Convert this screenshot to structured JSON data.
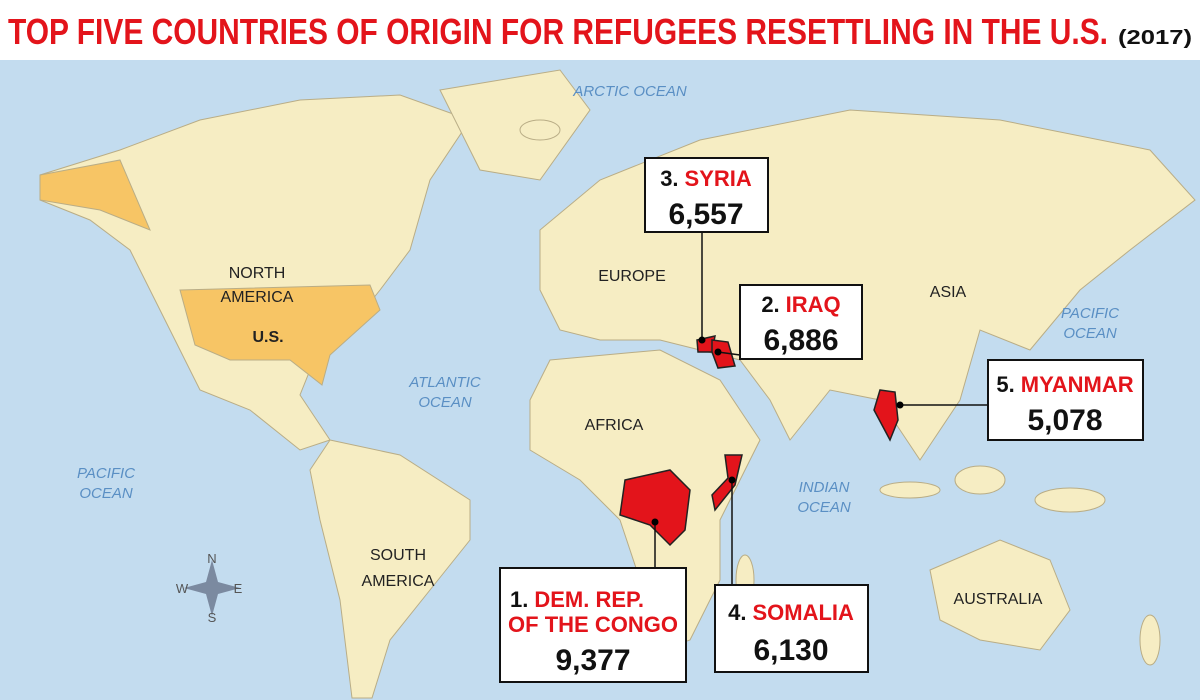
{
  "title": "TOP FIVE COUNTRIES OF ORIGIN FOR REFUGEES RESETTLING IN THE U.S.",
  "subtitle": "(2017)",
  "map_labels": [
    "ARCTIC OCEAN",
    "NORTH",
    "AMERICA",
    "U.S.",
    "EUROPE",
    "ASIA",
    "PACIFIC",
    "OCEAN",
    "ATLANTIC",
    "OCEAN",
    "AFRICA",
    "INDIAN",
    "OCEAN",
    "PACIFIC",
    "OCEAN",
    "SOUTH",
    "AMERICA",
    "AUSTRALIA"
  ],
  "compass": [
    "N",
    "W",
    "E",
    "S"
  ],
  "callouts": [
    {
      "rank": "1.",
      "country": [
        "DEM. REP.",
        "OF THE CONGO"
      ],
      "count": "9,377"
    },
    {
      "rank": "2.",
      "country": [
        "IRAQ"
      ],
      "count": "6,886"
    },
    {
      "rank": "3.",
      "country": [
        "SYRIA"
      ],
      "count": "6,557"
    },
    {
      "rank": "4.",
      "country": [
        "SOMALIA"
      ],
      "count": "6,130"
    },
    {
      "rank": "5.",
      "country": [
        "MYANMAR"
      ],
      "count": "5,078"
    }
  ]
}
